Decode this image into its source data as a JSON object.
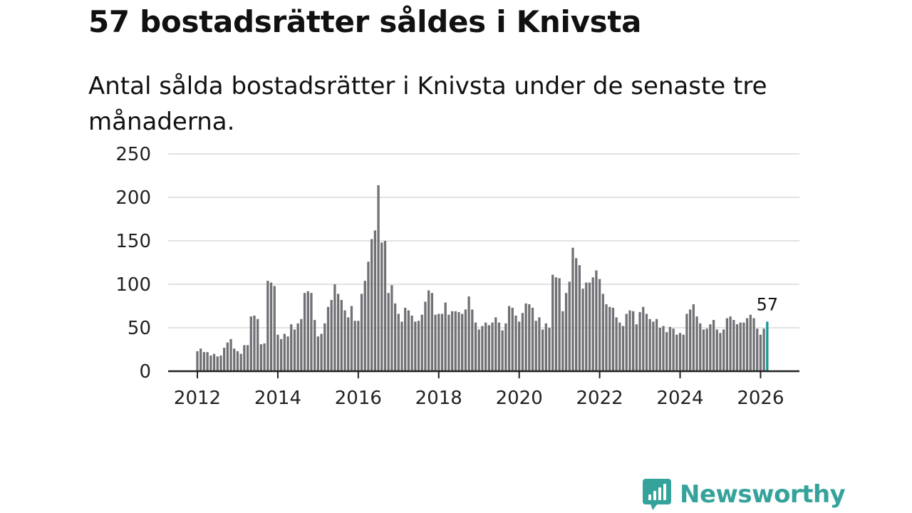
{
  "header": {
    "title": "57 bostadsrätter såldes i Knivsta",
    "subtitle": "Antal sålda bostadsrätter i Knivsta under de senaste tre månaderna."
  },
  "brand": {
    "name": "Newsworthy",
    "color": "#35a39b"
  },
  "colors": {
    "bar": "#717075",
    "highlight": "#129b96",
    "grid": "#d9d9d9",
    "axis": "#222222"
  },
  "chart_data": {
    "type": "bar",
    "title": "57 bostadsrätter såldes i Knivsta",
    "subtitle": "Antal sålda bostadsrätter i Knivsta under de senaste tre månaderna.",
    "xlabel": "",
    "ylabel": "",
    "ylim": [
      0,
      250
    ],
    "yticks": [
      0,
      50,
      100,
      150,
      200,
      250
    ],
    "xticks": [
      "2012",
      "2014",
      "2016",
      "2018",
      "2020",
      "2022",
      "2024",
      "2026"
    ],
    "grid": true,
    "first_period": "2012-01",
    "last_period": "2026-03",
    "highlight_label": "57",
    "values": [
      23,
      26,
      22,
      22,
      18,
      20,
      17,
      18,
      27,
      33,
      37,
      26,
      23,
      20,
      30,
      30,
      63,
      64,
      60,
      31,
      32,
      104,
      102,
      98,
      42,
      37,
      43,
      40,
      54,
      48,
      55,
      60,
      90,
      92,
      90,
      59,
      40,
      43,
      55,
      74,
      82,
      100,
      89,
      82,
      70,
      62,
      75,
      58,
      58,
      89,
      104,
      126,
      152,
      162,
      214,
      148,
      150,
      90,
      99,
      78,
      66,
      57,
      73,
      70,
      64,
      57,
      58,
      65,
      80,
      93,
      90,
      65,
      66,
      66,
      79,
      65,
      69,
      69,
      68,
      66,
      71,
      86,
      71,
      56,
      48,
      52,
      56,
      53,
      56,
      62,
      56,
      47,
      55,
      75,
      73,
      64,
      57,
      67,
      78,
      77,
      73,
      58,
      62,
      48,
      55,
      50,
      111,
      108,
      107,
      69,
      90,
      103,
      142,
      130,
      122,
      95,
      102,
      102,
      108,
      116,
      106,
      89,
      77,
      74,
      73,
      62,
      56,
      52,
      66,
      70,
      69,
      54,
      68,
      74,
      66,
      60,
      57,
      60,
      50,
      52,
      45,
      51,
      49,
      42,
      44,
      42,
      66,
      71,
      77,
      63,
      55,
      48,
      49,
      54,
      59,
      48,
      44,
      48,
      61,
      63,
      59,
      54,
      56,
      56,
      61,
      65,
      61,
      49,
      42,
      49,
      57
    ]
  }
}
